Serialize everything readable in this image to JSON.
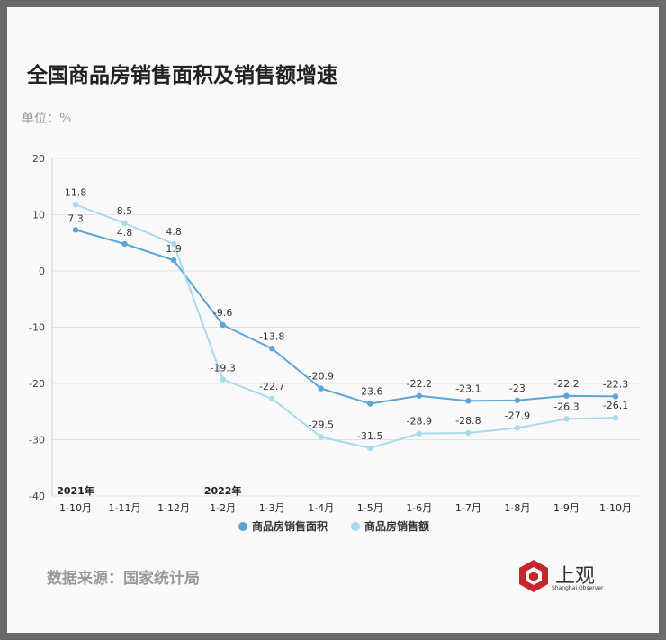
{
  "title": "全国商品房销售面积及销售额增速",
  "unit_label": "单位：%",
  "source": "数据来源：国家统计局",
  "logo": {
    "text": "上观",
    "subtext": "Shanghai Observer",
    "icon": "hexagon-logo-icon"
  },
  "colors": {
    "area": "#5aa5d6",
    "amount": "#a8daee",
    "grid": "#e2e2e2",
    "text": "#333333"
  },
  "chart_data": {
    "type": "line",
    "categories": [
      "1-10月",
      "1-11月",
      "1-12月",
      "1-2月",
      "1-3月",
      "1-4月",
      "1-5月",
      "1-6月",
      "1-7月",
      "1-8月",
      "1-9月",
      "1-10月"
    ],
    "year_labels": [
      {
        "category_index": 0,
        "text": "2021年"
      },
      {
        "category_index": 3,
        "text": "2022年"
      }
    ],
    "series": [
      {
        "name": "商品房销售面积",
        "color": "#5aa5d6",
        "values": [
          7.3,
          4.8,
          1.9,
          -9.6,
          -13.8,
          -20.9,
          -23.6,
          -22.2,
          -23.1,
          -23,
          -22.2,
          -22.3
        ]
      },
      {
        "name": "商品房销售额",
        "color": "#a8daee",
        "values": [
          11.8,
          8.5,
          4.8,
          -19.3,
          -22.7,
          -29.5,
          -31.5,
          -28.9,
          -28.8,
          -27.9,
          -26.3,
          -26.1
        ]
      }
    ],
    "ylim": [
      -40,
      20
    ],
    "yticks": [
      20,
      10,
      0,
      -10,
      -20,
      -30,
      -40
    ],
    "grid": true,
    "legend_position": "bottom-center"
  }
}
